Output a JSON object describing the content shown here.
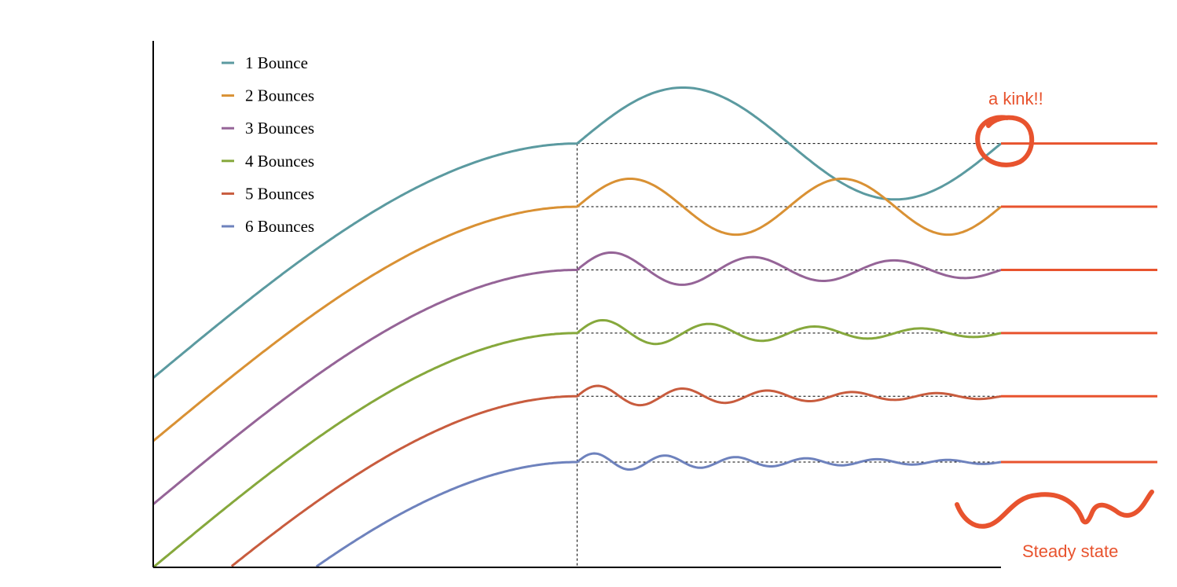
{
  "chart_data": {
    "type": "line",
    "xlim": [
      0,
      1.0
    ],
    "ylim": [
      0,
      1.0
    ],
    "grid": false,
    "legend_position": "top-left",
    "title": "",
    "xlabel": "",
    "ylabel": "",
    "x_transition": 0.5,
    "x_end": 1.0,
    "series": [
      {
        "name": "1 Bounce",
        "color": "#5b9aa0",
        "cycles": 1,
        "start": 0.36,
        "level": 0.805,
        "amp": 0.16,
        "decay": 0
      },
      {
        "name": "2 Bounces",
        "color": "#d99134",
        "cycles": 2,
        "start": 0.24,
        "level": 0.685,
        "amp": 0.09,
        "decay": 0
      },
      {
        "name": "3 Bounces",
        "color": "#956497",
        "cycles": 3,
        "start": 0.12,
        "level": 0.565,
        "amp": 0.055,
        "decay": 0.3
      },
      {
        "name": "4 Bounces",
        "color": "#86a83c",
        "cycles": 4,
        "start": 0.0,
        "level": 0.445,
        "amp": 0.042,
        "decay": 0.45
      },
      {
        "name": "5 Bounces",
        "color": "#c85c3e",
        "cycles": 5,
        "start": -0.12,
        "level": 0.325,
        "amp": 0.032,
        "decay": 0.5
      },
      {
        "name": "6 Bounces",
        "color": "#6e82bd",
        "cycles": 6,
        "start": -0.24,
        "level": 0.2,
        "amp": 0.028,
        "decay": 0.55
      }
    ],
    "annotations": [
      {
        "text": "a kink!!",
        "color": "#e8532e"
      },
      {
        "text": "Steady state",
        "color": "#e8532e"
      }
    ]
  }
}
